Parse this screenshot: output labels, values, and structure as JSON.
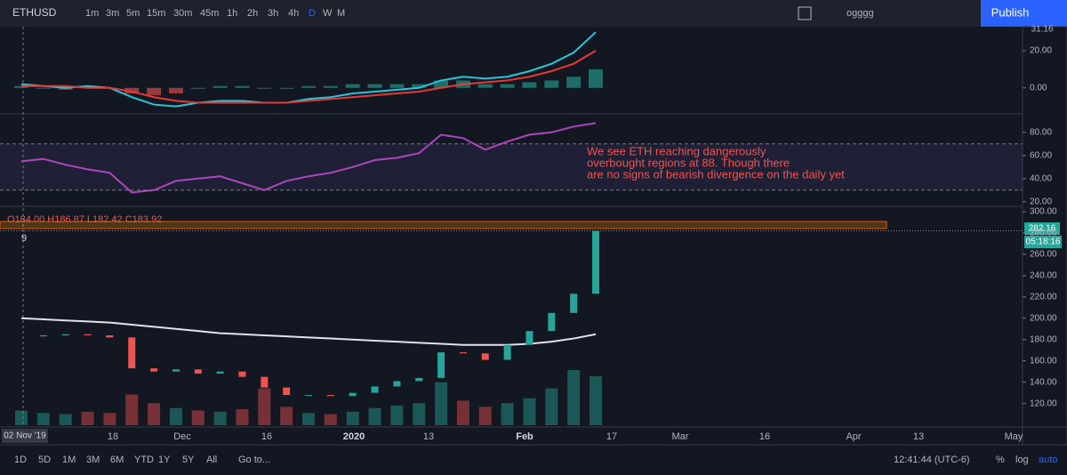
{
  "toolbar": {
    "symbol": "ETHUSD",
    "intervals": [
      "1m",
      "3m",
      "5m",
      "15m",
      "30m",
      "45m",
      "1h",
      "2h",
      "3h",
      "4h",
      "D",
      "W",
      "M"
    ],
    "layout_name": "ogggg",
    "publish": "Publish"
  },
  "macd_pane": {
    "ylim": [
      -14,
      32
    ],
    "yticks": [
      {
        "value": 0,
        "label": "0.00"
      },
      {
        "value": 20,
        "label": "20.00"
      }
    ],
    "current_label": "31.16",
    "macd": [
      2,
      1,
      0,
      1,
      0,
      -5,
      -9,
      -10,
      -8,
      -7,
      -7,
      -8,
      -8,
      -6,
      -5,
      -3,
      -2,
      -1,
      0,
      4,
      6,
      5,
      6,
      9,
      13,
      19,
      30
    ],
    "signal": [
      1,
      1,
      1,
      0,
      0,
      -2,
      -5,
      -7,
      -8,
      -8,
      -8,
      -8,
      -8,
      -7,
      -6,
      -5,
      -4,
      -3,
      -2,
      0,
      2,
      3,
      4,
      6,
      9,
      13,
      20
    ]
  },
  "rsi_pane": {
    "ylim": [
      16,
      96
    ],
    "yticks": [
      {
        "value": 20,
        "label": "20.00"
      },
      {
        "value": 40,
        "label": "40.00"
      },
      {
        "value": 60,
        "label": "60.00"
      },
      {
        "value": 80,
        "label": "80.00"
      }
    ],
    "bands": [
      70,
      30
    ],
    "values": [
      55,
      57,
      52,
      48,
      45,
      28,
      30,
      38,
      40,
      42,
      36,
      30,
      38,
      42,
      45,
      50,
      56,
      58,
      62,
      78,
      75,
      65,
      72,
      78,
      80,
      85,
      88
    ],
    "annotation": [
      "We see ETH reaching dangerously",
      "overbought regions at 88. Though there",
      "are no signs of bearish divergence on the daily yet"
    ]
  },
  "price_pane": {
    "ylim": [
      98,
      305
    ],
    "yticks": [
      {
        "value": 120,
        "label": "120.00"
      },
      {
        "value": 140,
        "label": "140.00"
      },
      {
        "value": 160,
        "label": "160.00"
      },
      {
        "value": 180,
        "label": "180.00"
      },
      {
        "value": 200,
        "label": "200.00"
      },
      {
        "value": 220,
        "label": "220.00"
      },
      {
        "value": 240,
        "label": "240.00"
      },
      {
        "value": 260,
        "label": "260.00"
      },
      {
        "value": 280,
        "label": "280.00"
      },
      {
        "value": 300,
        "label": "300.00"
      }
    ],
    "ohlc": "O184.00 H186.87 L182.42 C183.92",
    "indicator_count": "9",
    "last_price": "282.16",
    "countdown": "05:18:16",
    "closes": [
      183,
      184,
      185,
      184,
      182,
      153,
      150,
      152,
      148,
      150,
      145,
      135,
      128,
      128,
      127,
      130,
      136,
      141,
      144,
      168,
      167,
      161,
      175,
      188,
      205,
      223,
      282
    ],
    "ma200": [
      200,
      199,
      198,
      197,
      196,
      194,
      192,
      190,
      188,
      186,
      185,
      184,
      183,
      182,
      181,
      180,
      179,
      178,
      177,
      176,
      175,
      175,
      175,
      176,
      178,
      181,
      185
    ],
    "volume": [
      12,
      10,
      9,
      11,
      10,
      25,
      18,
      14,
      12,
      11,
      13,
      30,
      15,
      10,
      9,
      11,
      14,
      16,
      18,
      35,
      20,
      15,
      18,
      22,
      30,
      45,
      40
    ]
  },
  "time_axis": {
    "cursor": "02 Nov '19",
    "labels": [
      "18",
      "Dec",
      "16",
      "2020",
      "13",
      "Feb",
      "17",
      "Mar",
      "16",
      "Apr",
      "13",
      "May"
    ]
  },
  "bottom_bar": {
    "ranges": [
      "1D",
      "5D",
      "1M",
      "3M",
      "6M",
      "YTD",
      "1Y",
      "5Y",
      "All"
    ],
    "goto": "Go to...",
    "clock": "12:41:44 (UTC-6)",
    "percent": "%",
    "log": "log",
    "auto": "auto"
  }
}
